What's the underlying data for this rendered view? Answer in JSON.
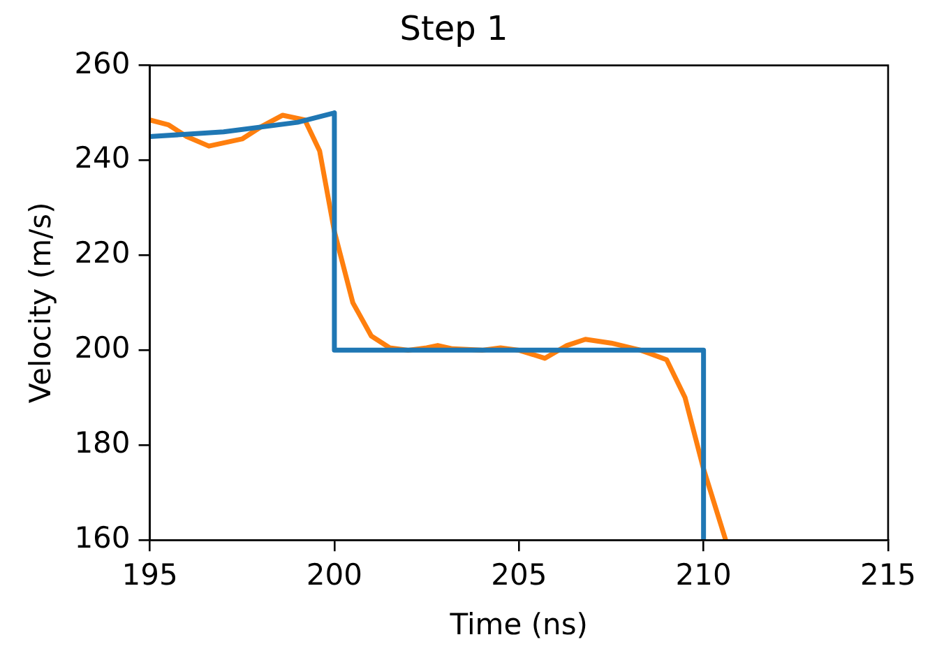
{
  "chart_data": {
    "type": "line",
    "title": "Step 1",
    "xlabel": "Time (ns)",
    "ylabel": "Velocity (m/s)",
    "xlim": [
      195,
      215
    ],
    "xticks": [
      195,
      200,
      205,
      210,
      215
    ],
    "ylim": [
      160,
      260
    ],
    "yticks": [
      160,
      180,
      200,
      220,
      240,
      260
    ],
    "grid": false,
    "legend": false,
    "marker": "none",
    "line_style": "solid",
    "series": [
      {
        "color": "#1f77b4",
        "x": [
          195,
          197,
          199,
          200,
          200,
          210,
          210
        ],
        "values": [
          245,
          246,
          248,
          250,
          200,
          200,
          160
        ]
      },
      {
        "color": "#ff7f0e",
        "x": [
          195,
          195.5,
          196,
          196.6,
          197.5,
          198,
          198.6,
          199.2,
          199.6,
          200,
          200.5,
          201,
          201.5,
          202,
          202.5,
          202.8,
          203.2,
          204,
          204.5,
          205,
          205.7,
          206.3,
          206.8,
          207.5,
          208.3,
          209,
          209.5,
          210,
          210.6
        ],
        "values": [
          248.5,
          247.5,
          245,
          243,
          244.5,
          247,
          249.5,
          248.5,
          242,
          225,
          210,
          203,
          200.5,
          200,
          200.5,
          201,
          200.3,
          200,
          200.5,
          200,
          198.3,
          201,
          202.3,
          201.5,
          200,
          198,
          190,
          175,
          160
        ]
      }
    ]
  }
}
